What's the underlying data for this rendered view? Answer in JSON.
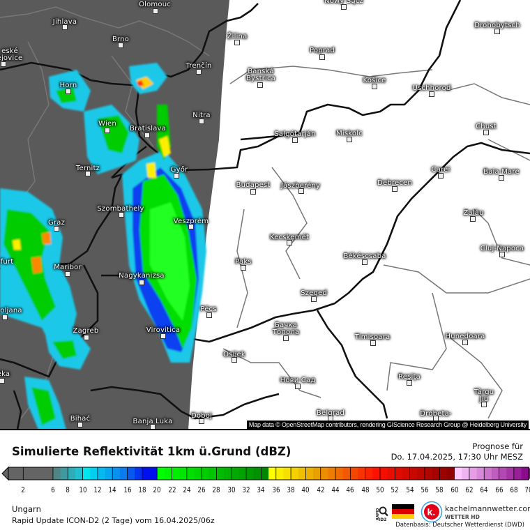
{
  "map": {
    "attribution": "Map data © OpenStreetMap contributors, rendering GIScience Research Group @ Heidelberg University",
    "cities": [
      {
        "name": "Olomouc"
      },
      {
        "name": "Jihlava"
      },
      {
        "name": "Brno"
      },
      {
        "name": "eské\nějovice"
      },
      {
        "name": "Horn"
      },
      {
        "name": "Wien"
      },
      {
        "name": "Bratislava"
      },
      {
        "name": "Trenčín"
      },
      {
        "name": "Žilina"
      },
      {
        "name": "Nitra"
      },
      {
        "name": "Győr"
      },
      {
        "name": "Ternitz"
      },
      {
        "name": "Szombathely"
      },
      {
        "name": "Budapest"
      },
      {
        "name": "Banská\nBystrica"
      },
      {
        "name": "Poprad"
      },
      {
        "name": "Košice"
      },
      {
        "name": "Uschhorod"
      },
      {
        "name": "Drohobytsch"
      },
      {
        "name": "Chust"
      },
      {
        "name": "Salgótarján"
      },
      {
        "name": "Miskolc"
      },
      {
        "name": "Jászberény"
      },
      {
        "name": "Debrecen"
      },
      {
        "name": "Carei"
      },
      {
        "name": "Baia Mare"
      },
      {
        "name": "Zalău"
      },
      {
        "name": "Cluj-Napoca"
      },
      {
        "name": "Kecskemét"
      },
      {
        "name": "Békéscsaba"
      },
      {
        "name": "Szeged"
      },
      {
        "name": "Paks"
      },
      {
        "name": "Veszprém"
      },
      {
        "name": "Pécs"
      },
      {
        "name": "Nagykanizsa"
      },
      {
        "name": "Virovitica"
      },
      {
        "name": "Osijek"
      },
      {
        "name": "Бачка\nТопола"
      },
      {
        "name": "Timişoara"
      },
      {
        "name": "Hunedoara"
      },
      {
        "name": "Reşiţa"
      },
      {
        "name": "Târgu\nJiu"
      },
      {
        "name": "Нови Сад"
      },
      {
        "name": "Belgrad"
      },
      {
        "name": "Drobeta-"
      },
      {
        "name": "Bihać"
      },
      {
        "name": "Banja Luka"
      },
      {
        "name": "Doboj"
      },
      {
        "name": "Maribor"
      },
      {
        "name": "Graz"
      },
      {
        "name": "Zagreb"
      },
      {
        "name": "oljana"
      },
      {
        "name": "eka"
      },
      {
        "name": "furt"
      },
      {
        "name": "Nowy Sącz"
      }
    ],
    "colors": {
      "no_data_area": "#5a5a5a",
      "land": "#ffffff",
      "country_border": "#111111",
      "admin_border": "#777777"
    }
  },
  "legend": {
    "title": "Simulierte Reflektivität 1km ü.Grund (dBZ)",
    "forecast_label": "Prognose für",
    "forecast_time": "Do. 17.04.2025, 17:30 Uhr MESZ",
    "region": "Ungarn",
    "model_run": "Rapid Update ICON-D2 (2 Tage) vom  16.04.2025/06z",
    "datenbasis": "Datenbasis: Deutscher Wetterdienst (DWD)",
    "brand": "kachelmannwetter.com",
    "brand_sub": "WETTER HD",
    "rapid_logo": "RAPID ID2",
    "logo_letter": "k.",
    "unit": "dBZ",
    "ticks": [
      "2",
      "6",
      "8",
      "10",
      "12",
      "14",
      "16",
      "18",
      "20",
      "22",
      "24",
      "26",
      "28",
      "30",
      "32",
      "34",
      "36",
      "38",
      "40",
      "42",
      "44",
      "46",
      "48",
      "50",
      "52",
      "54",
      "56",
      "58",
      "60",
      "62",
      "64",
      "66",
      "68",
      "70"
    ],
    "scale": {
      "min": 1,
      "max": 70,
      "stops": [
        [
          1,
          "#646464"
        ],
        [
          6,
          "#646464"
        ],
        [
          7,
          "#4f8585"
        ],
        [
          10,
          "#20c0d0"
        ],
        [
          11,
          "#00e4f0"
        ],
        [
          16,
          "#0a7cf0"
        ],
        [
          19,
          "#0010f0"
        ],
        [
          20,
          "#0010f0"
        ],
        [
          21,
          "#00ff00"
        ],
        [
          35,
          "#008800"
        ],
        [
          36,
          "#ffff00"
        ],
        [
          42,
          "#e8a000"
        ],
        [
          50,
          "#ff1000"
        ],
        [
          60,
          "#900000"
        ],
        [
          61,
          "#ffc8ff"
        ],
        [
          70,
          "#8c0a8c"
        ]
      ]
    }
  }
}
